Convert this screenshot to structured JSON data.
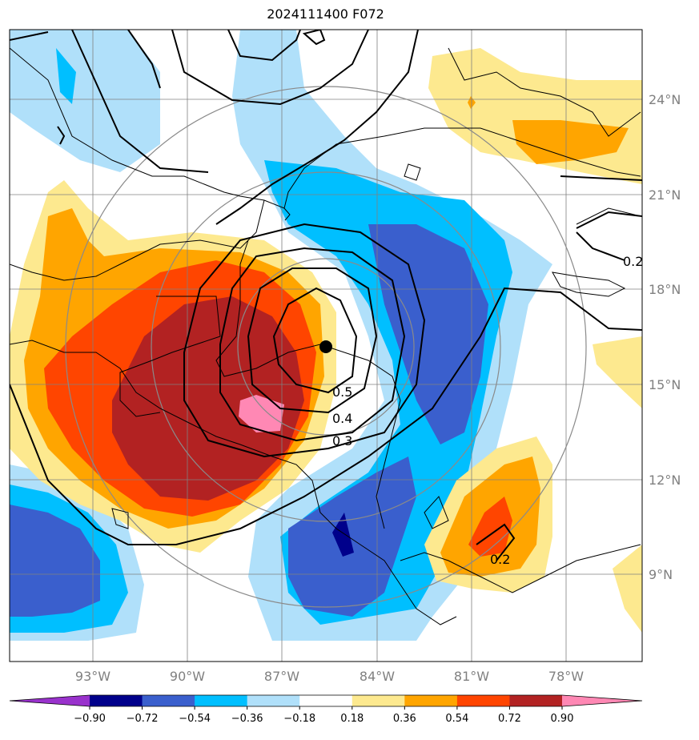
{
  "title": "2024111400 F072",
  "lat_labels": [
    "24°N",
    "21°N",
    "18°N",
    "15°N",
    "12°N",
    "9°N"
  ],
  "lon_labels": [
    "93°W",
    "90°W",
    "87°W",
    "84°W",
    "81°W",
    "78°W"
  ],
  "colorbar": {
    "ticks": [
      "−0.90",
      "−0.72",
      "−0.54",
      "−0.36",
      "−0.18",
      "0.18",
      "0.36",
      "0.54",
      "0.72",
      "0.90"
    ],
    "colors": [
      "#9932cc",
      "#00008b",
      "#3a5fcd",
      "#00bfff",
      "#b0e0fa",
      "#ffffff",
      "#fde98f",
      "#ffa500",
      "#ff4500",
      "#b22222",
      "#ff88b4"
    ]
  },
  "contour_labels": [
    "0.5",
    "0.4",
    "0.3",
    "0.2",
    "0.2"
  ],
  "center_marker": "black-dot"
}
